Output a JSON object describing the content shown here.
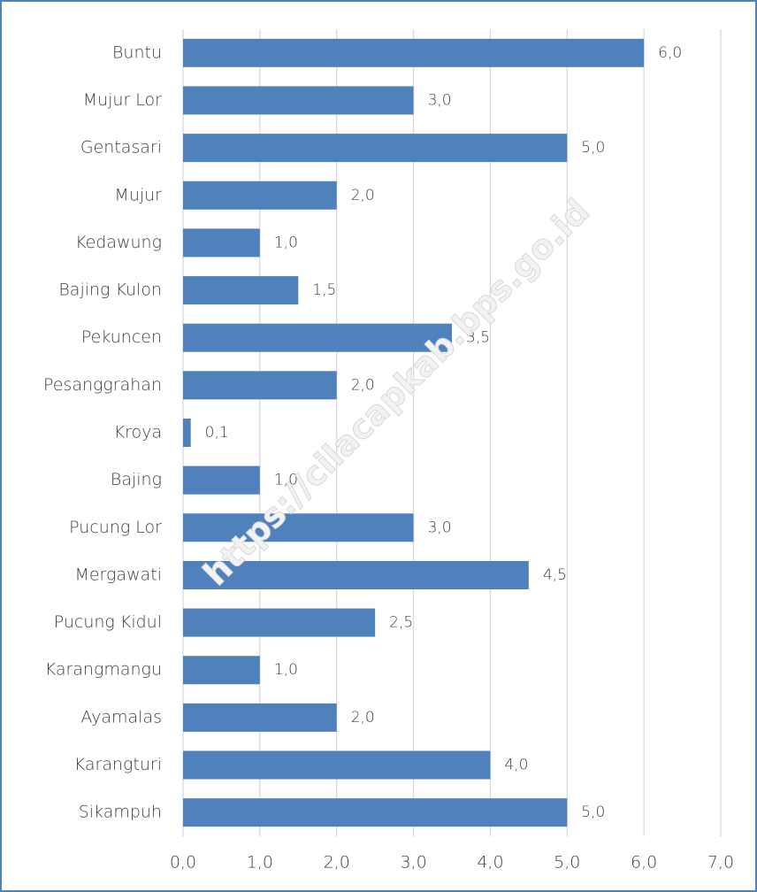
{
  "chart_data": {
    "type": "bar",
    "orientation": "horizontal",
    "categories": [
      "Buntu",
      "Mujur Lor",
      "Gentasari",
      "Mujur",
      "Kedawung",
      "Bajing Kulon",
      "Pekuncen",
      "Pesanggrahan",
      "Kroya",
      "Bajing",
      "Pucung Lor",
      "Mergawati",
      "Pucung Kidul",
      "Karangmangu",
      "Ayamalas",
      "Karangturi",
      "Sikampuh"
    ],
    "values": [
      6.0,
      3.0,
      5.0,
      2.0,
      1.0,
      1.5,
      3.5,
      2.0,
      0.1,
      1.0,
      3.0,
      4.5,
      2.5,
      1.0,
      2.0,
      4.0,
      5.0
    ],
    "value_labels": [
      "6,0",
      "3,0",
      "5,0",
      "2,0",
      "1,0",
      "1,5",
      "3,5",
      "2,0",
      "0,1",
      "1,0",
      "3,0",
      "4,5",
      "2,5",
      "1,0",
      "2,0",
      "4,0",
      "5,0"
    ],
    "color": "#4f81bd",
    "xlim": [
      0,
      7
    ],
    "xticks": [
      {
        "value": 0,
        "label": "0,0"
      },
      {
        "value": 1,
        "label": "1,0"
      },
      {
        "value": 2,
        "label": "2,0"
      },
      {
        "value": 3,
        "label": "3,0"
      },
      {
        "value": 4,
        "label": "4,0"
      },
      {
        "value": 5,
        "label": "5,0"
      },
      {
        "value": 6,
        "label": "6,0"
      },
      {
        "value": 7,
        "label": "7,0"
      }
    ],
    "grid": true,
    "watermark": "https://cilacapkab.bps.go.id"
  }
}
